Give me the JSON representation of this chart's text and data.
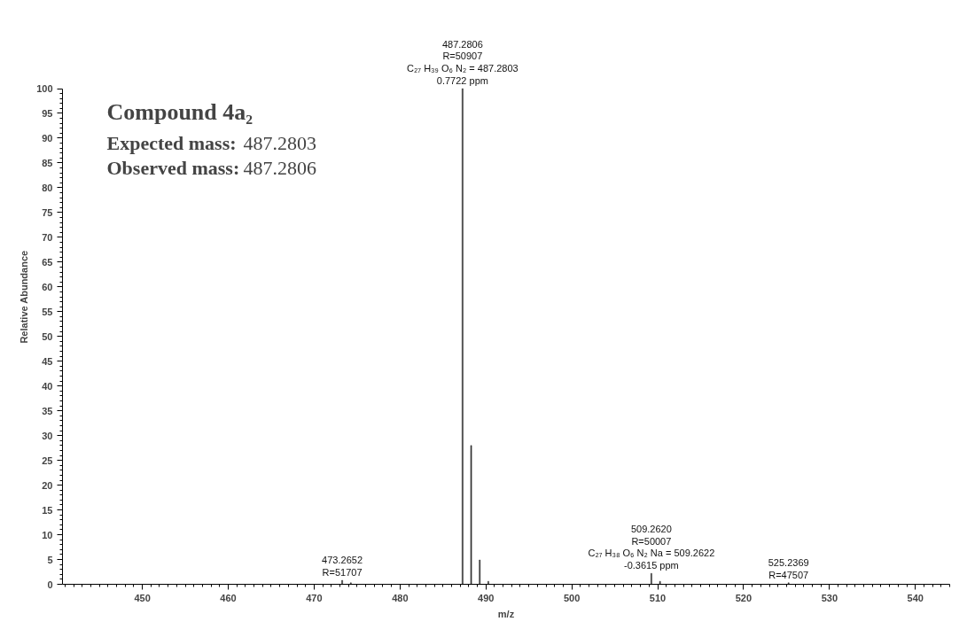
{
  "chart_data": {
    "type": "bar",
    "xlabel": "m/z",
    "ylabel": "Relative Abundance",
    "x": [
      473.2652,
      474.27,
      487.2806,
      488.28,
      489.28,
      490.28,
      509.262,
      510.27,
      525.2369
    ],
    "values": [
      0.8,
      0.3,
      100,
      28,
      4.9,
      0.6,
      2.2,
      0.6,
      0.3
    ],
    "color": "#333333",
    "xlim": [
      440.7,
      544
    ],
    "xticks": [
      450,
      460,
      470,
      480,
      490,
      500,
      510,
      520,
      530,
      540
    ],
    "ylim": [
      0,
      100
    ],
    "yticks": [
      0,
      5,
      10,
      15,
      20,
      25,
      30,
      35,
      40,
      45,
      50,
      55,
      60,
      65,
      70,
      75,
      80,
      85,
      90,
      95,
      100
    ],
    "grid": false,
    "annotations": [
      {
        "text": "487.2806\nR=50907\nC₂₇ H₃₉ O₆ N₂ = 487.2803\n0.7722 ppm",
        "x": 487.2806,
        "y": 100
      },
      {
        "text": "509.2620\nR=50007\nC₂₇ H₃₈ O₆ N₂ Na = 509.2622\n-0.3615 ppm",
        "x": 509.262,
        "y": 2.2
      },
      {
        "text": "473.2652\nR=51707",
        "x": 473.2652,
        "y": 0.8
      },
      {
        "text": "525.2369\nR=47507",
        "x": 525.2369,
        "y": 0.3
      },
      "Compound 4a₂",
      "Expected mass: 487.2803",
      "Observed mass: 487.2806"
    ]
  }
}
